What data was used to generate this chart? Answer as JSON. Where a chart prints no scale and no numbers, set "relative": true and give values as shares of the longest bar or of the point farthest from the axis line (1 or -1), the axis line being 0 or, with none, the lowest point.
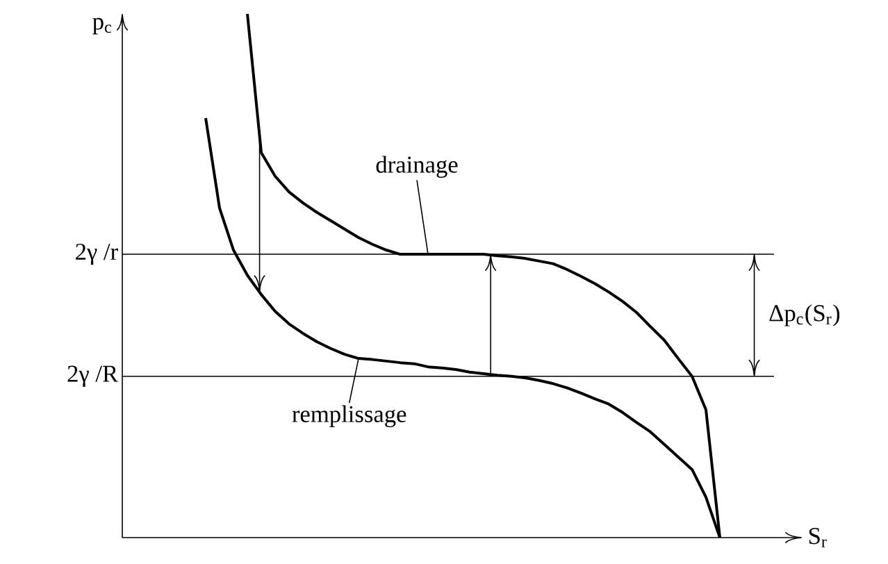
{
  "chart_data": {
    "type": "line",
    "relative": true,
    "xlabel": "S$_{r}$",
    "ylabel": "p$_{c}$",
    "categories": [
      null,
      null,
      null,
      null,
      null,
      null,
      null,
      null,
      null,
      null,
      null,
      null,
      null,
      null,
      null,
      null,
      null,
      null,
      null,
      null,
      null,
      null,
      null,
      null,
      null,
      null,
      null,
      null,
      null,
      null,
      null,
      null,
      null,
      null,
      null,
      null,
      null,
      null,
      null,
      null,
      null,
      null,
      null,
      null,
      null,
      null,
      null,
      null,
      null
    ],
    "series": [
      {
        "name": "drainage",
        "color": "#000000",
        "values": [
          null,
          null,
          null,
          null,
          null,
          null,
          null,
          null,
          null,
          1,
          0.735,
          0.69,
          0.66,
          0.639,
          0.621,
          0.605,
          0.589,
          0.573,
          0.56,
          0.549,
          0.541,
          0.541,
          0.541,
          0.541,
          0.541,
          0.541,
          0.541,
          0.538,
          0.536,
          0.533,
          0.528,
          0.523,
          0.512,
          0.499,
          0.485,
          0.469,
          0.451,
          0.43,
          0.403,
          0.377,
          0.342,
          0.308,
          0.244,
          0,
          null,
          null,
          null,
          null,
          null
        ]
      },
      {
        "name": "remplissage",
        "color": "#000000",
        "values": [
          null,
          null,
          null,
          null,
          null,
          null,
          0.801,
          0.629,
          0.549,
          0.501,
          0.464,
          0.432,
          0.408,
          0.39,
          0.374,
          0.361,
          0.35,
          0.342,
          0.34,
          0.337,
          0.334,
          0.332,
          0.326,
          0.324,
          0.321,
          0.316,
          0.313,
          0.31,
          0.308,
          0.305,
          0.3,
          0.294,
          0.286,
          0.276,
          0.265,
          0.255,
          0.239,
          0.22,
          0.202,
          0.178,
          0.154,
          0.13,
          0.077,
          0,
          null,
          null,
          null,
          null,
          null
        ]
      }
    ],
    "ref_lines": [
      {
        "axis": "y",
        "value": 0.541,
        "label": "2γ /r"
      },
      {
        "axis": "y",
        "value": 0.308,
        "label": "2γ /R"
      }
    ],
    "annotations": [
      "Δp$_{c}$(S$_{r}$)"
    ]
  }
}
